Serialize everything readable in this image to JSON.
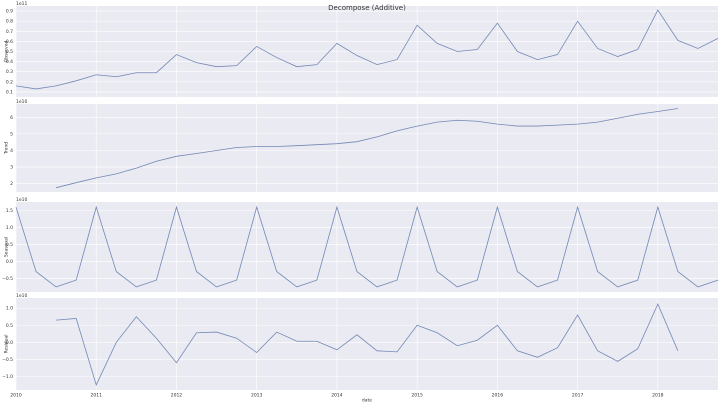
{
  "chart_data": [
    {
      "type": "line",
      "title": "Decompose (Additive)",
      "ylabel": "Observed",
      "scale_label": "1e11",
      "color": "#7388b5",
      "grid": true,
      "x": [
        2010,
        2010.25,
        2010.5,
        2010.75,
        2011,
        2011.25,
        2011.5,
        2011.75,
        2012,
        2012.25,
        2012.5,
        2012.75,
        2013,
        2013.25,
        2013.5,
        2013.75,
        2014,
        2014.25,
        2014.5,
        2014.75,
        2015,
        2015.25,
        2015.5,
        2015.75,
        2016,
        2016.25,
        2016.5,
        2016.75,
        2017,
        2017.25,
        2017.5,
        2017.75,
        2018,
        2018.25,
        2018.5,
        2018.75
      ],
      "values": [
        0.16,
        0.13,
        0.16,
        0.21,
        0.27,
        0.25,
        0.29,
        0.29,
        0.47,
        0.39,
        0.35,
        0.36,
        0.55,
        0.44,
        0.35,
        0.37,
        0.58,
        0.46,
        0.37,
        0.42,
        0.76,
        0.58,
        0.5,
        0.52,
        0.78,
        0.5,
        0.42,
        0.47,
        0.8,
        0.53,
        0.45,
        0.52,
        0.91,
        0.61,
        0.53,
        0.63
      ],
      "xlim": [
        2010,
        2018.75
      ],
      "xticks": [
        2010,
        2011,
        2012,
        2013,
        2014,
        2015,
        2016,
        2017,
        2018
      ],
      "ylim": [
        0.05,
        0.95
      ],
      "yticks": [
        0.1,
        0.2,
        0.3,
        0.4,
        0.5,
        0.6,
        0.7,
        0.8,
        0.9
      ]
    },
    {
      "type": "line",
      "ylabel": "Trend",
      "scale_label": "1e10",
      "color": "#7388b5",
      "grid": true,
      "x": [
        2010,
        2010.25,
        2010.5,
        2010.75,
        2011,
        2011.25,
        2011.5,
        2011.75,
        2012,
        2012.25,
        2012.5,
        2012.75,
        2013,
        2013.25,
        2013.5,
        2013.75,
        2014,
        2014.25,
        2014.5,
        2014.75,
        2015,
        2015.25,
        2015.5,
        2015.75,
        2016,
        2016.25,
        2016.5,
        2016.75,
        2017,
        2017.25,
        2017.5,
        2017.75,
        2018,
        2018.25,
        2018.5,
        2018.75
      ],
      "values": [
        null,
        null,
        1.76,
        2.06,
        2.35,
        2.59,
        2.94,
        3.35,
        3.65,
        3.82,
        4.0,
        4.18,
        4.24,
        4.24,
        4.29,
        4.35,
        4.41,
        4.53,
        4.82,
        5.18,
        5.47,
        5.71,
        5.82,
        5.76,
        5.59,
        5.47,
        5.47,
        5.53,
        5.59,
        5.71,
        5.94,
        6.18,
        6.35,
        6.53,
        null,
        null
      ],
      "xlim": [
        2010,
        2018.75
      ],
      "xticks": [
        2010,
        2011,
        2012,
        2013,
        2014,
        2015,
        2016,
        2017,
        2018
      ],
      "ylim": [
        1.5,
        6.8
      ],
      "yticks": [
        2,
        3,
        4,
        5,
        6
      ]
    },
    {
      "type": "line",
      "ylabel": "Seasonal",
      "scale_label": "1e10",
      "color": "#7388b5",
      "grid": true,
      "x": [
        2010,
        2010.25,
        2010.5,
        2010.75,
        2011,
        2011.25,
        2011.5,
        2011.75,
        2012,
        2012.25,
        2012.5,
        2012.75,
        2013,
        2013.25,
        2013.5,
        2013.75,
        2014,
        2014.25,
        2014.5,
        2014.75,
        2015,
        2015.25,
        2015.5,
        2015.75,
        2016,
        2016.25,
        2016.5,
        2016.75,
        2017,
        2017.25,
        2017.5,
        2017.75,
        2018,
        2018.25,
        2018.5,
        2018.75
      ],
      "values": [
        1.6,
        -0.3,
        -0.75,
        -0.55,
        1.6,
        -0.3,
        -0.75,
        -0.55,
        1.6,
        -0.3,
        -0.75,
        -0.55,
        1.6,
        -0.3,
        -0.75,
        -0.55,
        1.6,
        -0.3,
        -0.75,
        -0.55,
        1.6,
        -0.3,
        -0.75,
        -0.55,
        1.6,
        -0.3,
        -0.75,
        -0.55,
        1.6,
        -0.3,
        -0.75,
        -0.55,
        1.6,
        -0.3,
        -0.75,
        -0.55
      ],
      "xlim": [
        2010,
        2018.75
      ],
      "xticks": [
        2010,
        2011,
        2012,
        2013,
        2014,
        2015,
        2016,
        2017,
        2018
      ],
      "ylim": [
        -0.9,
        1.75
      ],
      "yticks": [
        {
          "value": 1.5,
          "label": "1.5"
        },
        {
          "value": 1,
          "label": "1.0"
        },
        {
          "value": 0.5,
          "label": "0.5"
        },
        {
          "value": 0,
          "label": "0.0"
        },
        {
          "value": -0.5,
          "label": "−0.5"
        }
      ]
    },
    {
      "type": "line",
      "ylabel": "Residual",
      "scale_label": "1e10",
      "xlabel": "date",
      "color": "#7388b5",
      "grid": true,
      "x": [
        2010,
        2010.25,
        2010.5,
        2010.75,
        2011,
        2011.25,
        2011.5,
        2011.75,
        2012,
        2012.25,
        2012.5,
        2012.75,
        2013,
        2013.25,
        2013.5,
        2013.75,
        2014,
        2014.25,
        2014.5,
        2014.75,
        2015,
        2015.25,
        2015.5,
        2015.75,
        2016,
        2016.25,
        2016.5,
        2016.75,
        2017,
        2017.25,
        2017.5,
        2017.75,
        2018,
        2018.25,
        2018.5,
        2018.75
      ],
      "values": [
        null,
        null,
        0.65,
        0.7,
        -1.25,
        0.0,
        0.75,
        0.12,
        -0.6,
        0.28,
        0.3,
        0.12,
        -0.3,
        0.3,
        0.03,
        0.03,
        -0.22,
        0.22,
        -0.25,
        -0.28,
        0.5,
        0.28,
        -0.1,
        0.06,
        0.5,
        -0.25,
        -0.44,
        -0.16,
        0.8,
        -0.25,
        -0.56,
        -0.19,
        1.12,
        -0.25,
        null,
        null
      ],
      "xlim": [
        2010,
        2018.75
      ],
      "xticks": [
        2010,
        2011,
        2012,
        2013,
        2014,
        2015,
        2016,
        2017,
        2018
      ],
      "ylim": [
        -1.4,
        1.3
      ],
      "yticks": [
        {
          "value": 1,
          "label": "1.0"
        },
        {
          "value": 0.5,
          "label": "0.5"
        },
        {
          "value": 0,
          "label": "0.0"
        },
        {
          "value": -0.5,
          "label": "−0.5"
        },
        {
          "value": -1,
          "label": "−1.0"
        }
      ]
    }
  ]
}
